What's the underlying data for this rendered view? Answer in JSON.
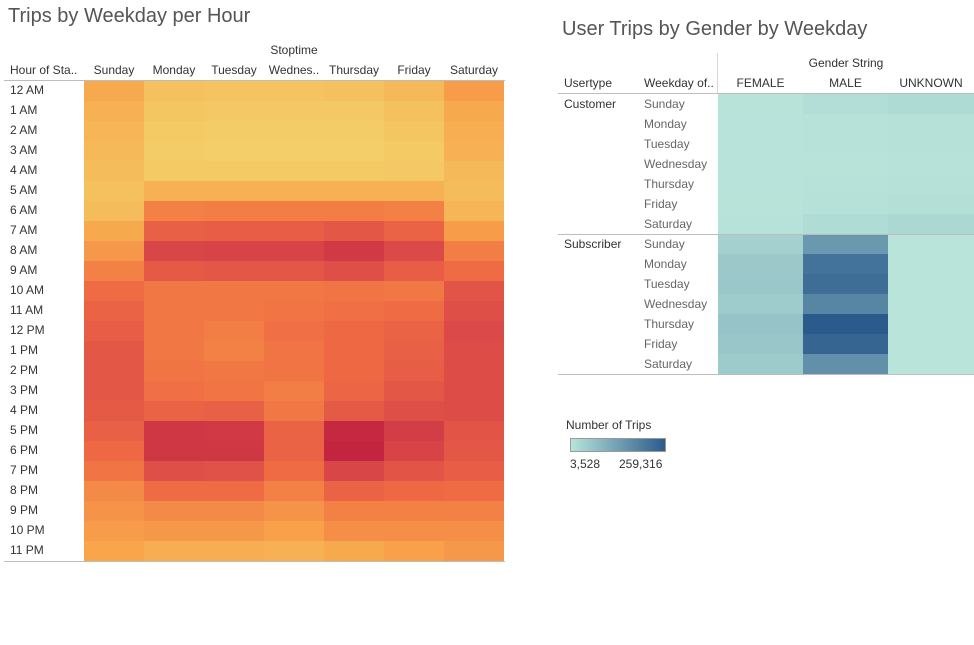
{
  "chart_data": [
    {
      "type": "heatmap",
      "title": "Trips by Weekday per Hour",
      "column_group_label": "Stoptime",
      "row_header": "Hour of Sta..",
      "columns": [
        "Sunday",
        "Monday",
        "Tuesday",
        "Wednes..",
        "Thursday",
        "Friday",
        "Saturday"
      ],
      "rows": [
        "12 AM",
        "1 AM",
        "2 AM",
        "3 AM",
        "4 AM",
        "5 AM",
        "6 AM",
        "7 AM",
        "8 AM",
        "9 AM",
        "10 AM",
        "11 AM",
        "12 PM",
        "1 PM",
        "2 PM",
        "3 PM",
        "4 PM",
        "5 PM",
        "6 PM",
        "7 PM",
        "8 PM",
        "9 PM",
        "10 PM",
        "11 PM"
      ],
      "values": [
        [
          0.22,
          0.1,
          0.08,
          0.08,
          0.1,
          0.14,
          0.28
        ],
        [
          0.18,
          0.07,
          0.06,
          0.06,
          0.06,
          0.1,
          0.22
        ],
        [
          0.16,
          0.05,
          0.04,
          0.04,
          0.04,
          0.07,
          0.2
        ],
        [
          0.14,
          0.04,
          0.03,
          0.03,
          0.03,
          0.05,
          0.18
        ],
        [
          0.12,
          0.05,
          0.05,
          0.05,
          0.05,
          0.06,
          0.14
        ],
        [
          0.1,
          0.18,
          0.18,
          0.18,
          0.18,
          0.18,
          0.12
        ],
        [
          0.12,
          0.4,
          0.42,
          0.42,
          0.42,
          0.4,
          0.16
        ],
        [
          0.22,
          0.58,
          0.6,
          0.6,
          0.64,
          0.56,
          0.28
        ],
        [
          0.3,
          0.76,
          0.78,
          0.78,
          0.84,
          0.74,
          0.42
        ],
        [
          0.4,
          0.62,
          0.64,
          0.64,
          0.7,
          0.6,
          0.5
        ],
        [
          0.5,
          0.44,
          0.44,
          0.44,
          0.46,
          0.44,
          0.66
        ],
        [
          0.56,
          0.44,
          0.44,
          0.46,
          0.48,
          0.5,
          0.7
        ],
        [
          0.6,
          0.44,
          0.42,
          0.48,
          0.52,
          0.56,
          0.74
        ],
        [
          0.64,
          0.44,
          0.4,
          0.46,
          0.52,
          0.58,
          0.72
        ],
        [
          0.64,
          0.46,
          0.44,
          0.46,
          0.52,
          0.6,
          0.72
        ],
        [
          0.64,
          0.48,
          0.46,
          0.42,
          0.54,
          0.64,
          0.72
        ],
        [
          0.62,
          0.56,
          0.58,
          0.44,
          0.62,
          0.7,
          0.72
        ],
        [
          0.58,
          0.86,
          0.84,
          0.56,
          0.96,
          0.82,
          0.66
        ],
        [
          0.52,
          0.86,
          0.86,
          0.56,
          0.98,
          0.78,
          0.64
        ],
        [
          0.46,
          0.7,
          0.68,
          0.5,
          0.76,
          0.66,
          0.6
        ],
        [
          0.36,
          0.5,
          0.5,
          0.4,
          0.56,
          0.52,
          0.5
        ],
        [
          0.32,
          0.36,
          0.36,
          0.32,
          0.4,
          0.4,
          0.4
        ],
        [
          0.28,
          0.3,
          0.3,
          0.26,
          0.34,
          0.34,
          0.34
        ],
        [
          0.24,
          0.2,
          0.2,
          0.18,
          0.22,
          0.26,
          0.3
        ]
      ],
      "color_scale": [
        "#f3d46c",
        "#f8a34a",
        "#ef6b43",
        "#da4848",
        "#c1223f"
      ]
    },
    {
      "type": "heatmap",
      "title": "User Trips by Gender by Weekday",
      "column_group_label": "Gender String",
      "row_headers": [
        "Usertype",
        "Weekday of.."
      ],
      "columns": [
        "FEMALE",
        "MALE",
        "UNKNOWN"
      ],
      "groups": [
        {
          "name": "Customer",
          "rows": [
            "Sunday",
            "Monday",
            "Tuesday",
            "Wednesday",
            "Thursday",
            "Friday",
            "Saturday"
          ],
          "values": [
            [
              6000,
              14000,
              20000
            ],
            [
              5000,
              7000,
              9000
            ],
            [
              4800,
              6500,
              8500
            ],
            [
              4700,
              6000,
              8000
            ],
            [
              5000,
              7000,
              9000
            ],
            [
              5500,
              9000,
              12000
            ],
            [
              8000,
              19000,
              26000
            ]
          ]
        },
        {
          "name": "Subscriber",
          "rows": [
            "Sunday",
            "Monday",
            "Tuesday",
            "Wednesday",
            "Thursday",
            "Friday",
            "Saturday"
          ],
          "values": [
            [
              40000,
              145000,
              3528
            ],
            [
              55000,
              215000,
              3700
            ],
            [
              58000,
              225000,
              3800
            ],
            [
              50000,
              180000,
              3750
            ],
            [
              65000,
              259316,
              3900
            ],
            [
              60000,
              240000,
              3800
            ],
            [
              52000,
              160000,
              3600
            ]
          ]
        }
      ],
      "legend": {
        "title": "Number of Trips",
        "min_label": "3,528",
        "max_label": "259,316",
        "min": 3528,
        "max": 259316
      },
      "color_scale": [
        "#b8e4da",
        "#2b5b8c"
      ]
    }
  ]
}
